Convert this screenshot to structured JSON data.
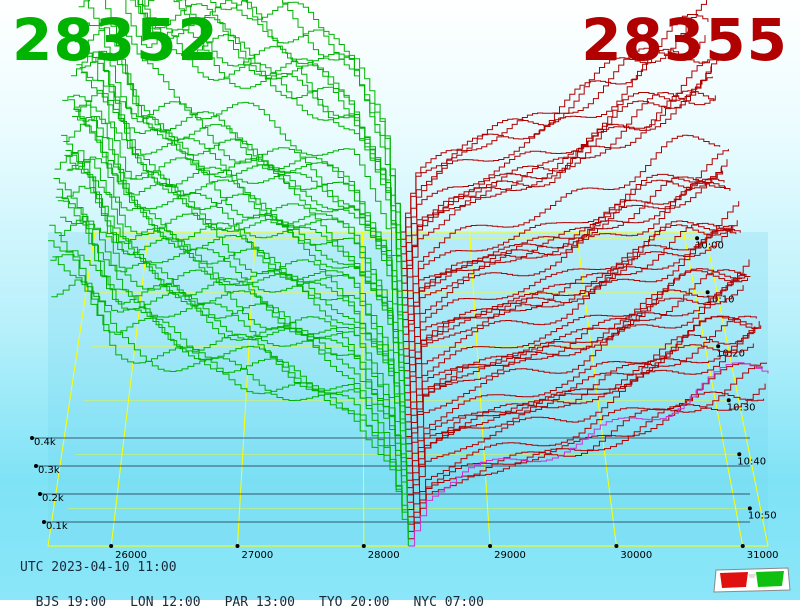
{
  "header": {
    "bid_price": "28352",
    "ask_price": "28355",
    "bid_color": "#00b300",
    "ask_color": "#b00000"
  },
  "footer": {
    "utc": "UTC 2023-04-10 11:00",
    "zones": [
      "BJS 19:00",
      "LON 12:00",
      "PAR 13:00",
      "TYO 20:00",
      "NYC 07:00"
    ]
  },
  "glasses_icon": "3d-glasses-icon",
  "chart_data": {
    "type": "area",
    "title": "",
    "price_ticks": [
      26000,
      27000,
      28000,
      29000,
      30000,
      31000
    ],
    "price_tick_labels": [
      "26000",
      "27000",
      "28000",
      "29000",
      "30000",
      "31000"
    ],
    "depth_ticks": [
      "0.1k",
      "0.2k",
      "0.3k",
      "0.4k"
    ],
    "time_ticks": [
      "10:00",
      "10:10",
      "10:20",
      "10:30",
      "10:40",
      "10:50"
    ],
    "xlim": [
      25500,
      31200
    ],
    "bid_color": "#00b300",
    "ask_color": "#b00000",
    "latest_ask_color": "#cc33cc",
    "grid": true,
    "series": [
      {
        "side": "bid",
        "levels": [
          {
            "price": 25500,
            "depth": 0.45
          },
          {
            "price": 25700,
            "depth": 0.44
          },
          {
            "price": 26000,
            "depth": 0.33
          },
          {
            "price": 26500,
            "depth": 0.3
          },
          {
            "price": 27000,
            "depth": 0.27
          },
          {
            "price": 27500,
            "depth": 0.24
          },
          {
            "price": 27900,
            "depth": 0.21
          },
          {
            "price": 28200,
            "depth": 0.12
          },
          {
            "price": 28352,
            "depth": 0.0
          }
        ]
      },
      {
        "side": "ask",
        "levels": [
          {
            "price": 28355,
            "depth": 0.0
          },
          {
            "price": 28500,
            "depth": 0.07
          },
          {
            "price": 28800,
            "depth": 0.1
          },
          {
            "price": 29200,
            "depth": 0.12
          },
          {
            "price": 29700,
            "depth": 0.14
          },
          {
            "price": 30200,
            "depth": 0.18
          },
          {
            "price": 30700,
            "depth": 0.22
          },
          {
            "price": 31200,
            "depth": 0.25
          }
        ]
      }
    ]
  }
}
